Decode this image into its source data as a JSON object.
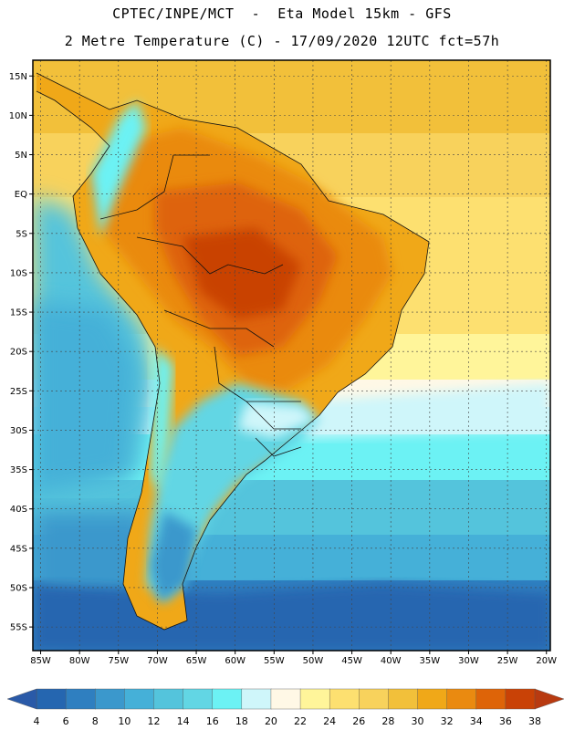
{
  "header": {
    "line1": "CPTEC/INPE/MCT  -  Eta Model 15km - GFS",
    "line2": "2 Metre Temperature (C) - 17/09/2020 12UTC fct=57h"
  },
  "map": {
    "region": "South America",
    "variable": "2 Metre Temperature",
    "lon_range": [
      -86,
      -19.5
    ],
    "lat_range": [
      -58,
      17
    ],
    "lat_ticks": [
      "15N",
      "10N",
      "5N",
      "EQ",
      "5S",
      "10S",
      "15S",
      "20S",
      "25S",
      "30S",
      "35S",
      "40S",
      "45S",
      "50S",
      "55S"
    ],
    "lon_ticks": [
      "85W",
      "80W",
      "75W",
      "70W",
      "65W",
      "60W",
      "55W",
      "50W",
      "45W",
      "40W",
      "35W",
      "30W",
      "25W",
      "20W"
    ],
    "grid": "dashed"
  },
  "colorbar": {
    "labels": [
      "4",
      "6",
      "8",
      "10",
      "12",
      "14",
      "16",
      "18",
      "20",
      "22",
      "24",
      "26",
      "28",
      "30",
      "32",
      "34",
      "36",
      "38"
    ],
    "colors": [
      "#2566b0",
      "#2f7fc0",
      "#3b98cc",
      "#45b0d8",
      "#54c4dc",
      "#62d6e4",
      "#6cf2f4",
      "#cff6fa",
      "#fff8e6",
      "#fff59a",
      "#fde070",
      "#f8d25c",
      "#f2c03a",
      "#f0a818",
      "#ea8a10",
      "#de6408",
      "#c94206",
      "#b83808"
    ],
    "low_color": "#2a5aa8",
    "high_color": "#b83a10"
  }
}
